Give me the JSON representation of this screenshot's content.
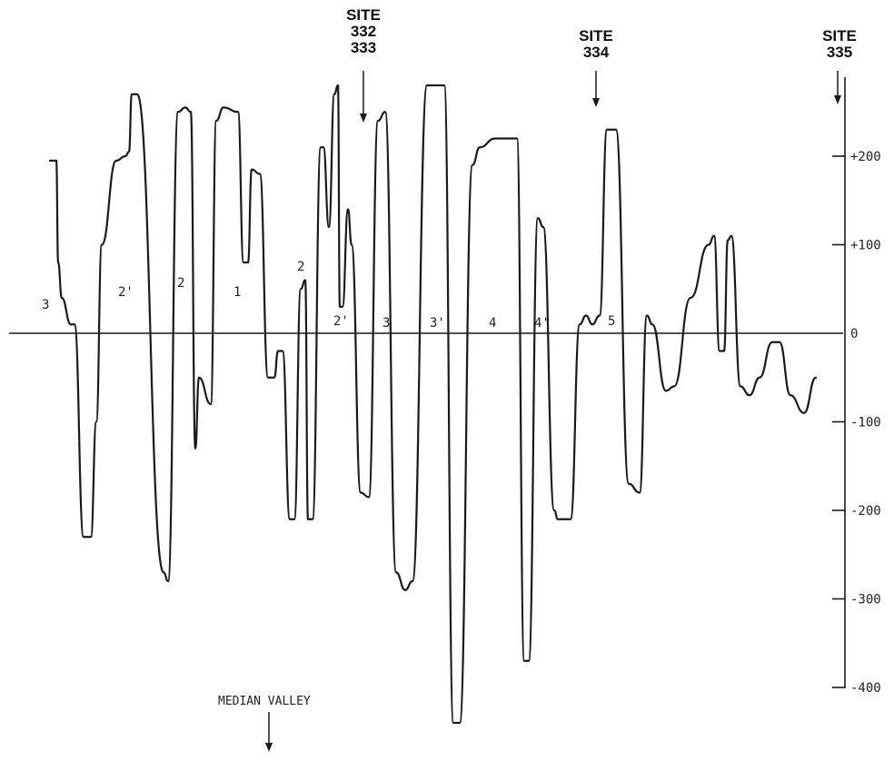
{
  "chart_data": {
    "type": "line",
    "title": "",
    "xlabel": "",
    "ylabel": "",
    "ylim": [
      -400,
      200
    ],
    "y_ticks": [
      {
        "value": 200,
        "label": "+200"
      },
      {
        "value": 100,
        "label": "+100"
      },
      {
        "value": 0,
        "label": "0"
      },
      {
        "value": -100,
        "label": "-100"
      },
      {
        "value": -200,
        "label": "-200"
      },
      {
        "value": -300,
        "label": "-300"
      },
      {
        "value": -400,
        "label": "-400"
      }
    ],
    "series": [
      {
        "values": [
          195,
          195,
          80,
          40,
          10,
          10,
          -230,
          -230,
          -100,
          100,
          195,
          200,
          205,
          270,
          270,
          -270,
          -280,
          250,
          255,
          250,
          -130,
          -50,
          -80,
          240,
          255,
          250,
          80,
          80,
          185,
          180,
          -50,
          -50,
          -20,
          -20,
          -210,
          -210,
          50,
          60,
          -210,
          -210,
          210,
          210,
          120,
          270,
          280,
          30,
          30,
          140,
          100,
          -180,
          -185,
          240,
          250,
          -270,
          -290,
          -280,
          280,
          280,
          -440,
          -440,
          190,
          210,
          220,
          220,
          -370,
          -370,
          130,
          120,
          -200,
          -210,
          -210,
          10,
          20,
          10,
          20,
          230,
          230,
          -170,
          -180,
          20,
          10,
          -65,
          -60,
          40,
          100,
          110,
          -20,
          -20,
          105,
          110,
          -60,
          -70,
          -50,
          -10,
          -10,
          -70,
          -90,
          -50
        ],
        "color": "#1a1a1a"
      }
    ],
    "anomaly_labels": [
      "3",
      "2'",
      "2",
      "1",
      "2",
      "2'",
      "3",
      "3'",
      "4",
      "4'",
      "5"
    ],
    "site_markers": [
      {
        "lines": [
          "SITE",
          "332",
          "333"
        ]
      },
      {
        "lines": [
          "SITE",
          "334"
        ]
      },
      {
        "lines": [
          "SITE",
          "335"
        ]
      }
    ],
    "valley_marker": "MEDIAN VALLEY",
    "grid": false
  }
}
